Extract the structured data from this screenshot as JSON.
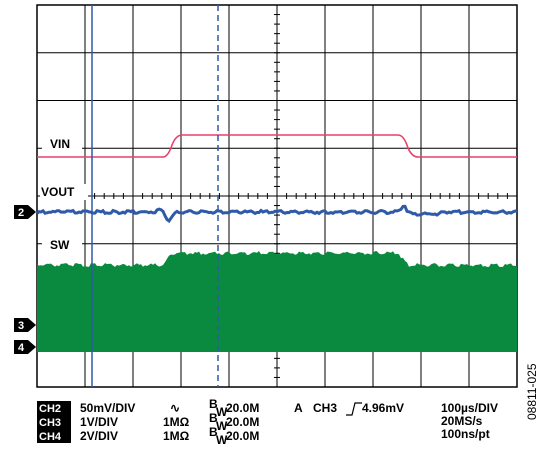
{
  "traces": [
    {
      "label": "VIN"
    },
    {
      "label": "VOUT"
    },
    {
      "label": "SW"
    }
  ],
  "markers": [
    "2",
    "3",
    "4"
  ],
  "channels": [
    {
      "name": "CH2",
      "scale": "50mV/DIV",
      "coupling": "∿",
      "bw_symbol": "B",
      "bw_sub": "W",
      "bw_value": "20.0M"
    },
    {
      "name": "CH3",
      "scale": "1V/DIV",
      "coupling": "1MΩ",
      "bw_symbol": "B",
      "bw_sub": "W",
      "bw_value": "20.0M"
    },
    {
      "name": "CH4",
      "scale": "2V/DIV",
      "coupling": "1MΩ",
      "bw_symbol": "B",
      "bw_sub": "W",
      "bw_value": "20.0M"
    }
  ],
  "trigger": {
    "mode": "A",
    "source": "CH3",
    "level": "4.96mV"
  },
  "timebase": {
    "scale": "100µs/DIV",
    "rate": "20MS/s",
    "resolution": "100ns/pt"
  },
  "figure_id": "08811-025"
}
